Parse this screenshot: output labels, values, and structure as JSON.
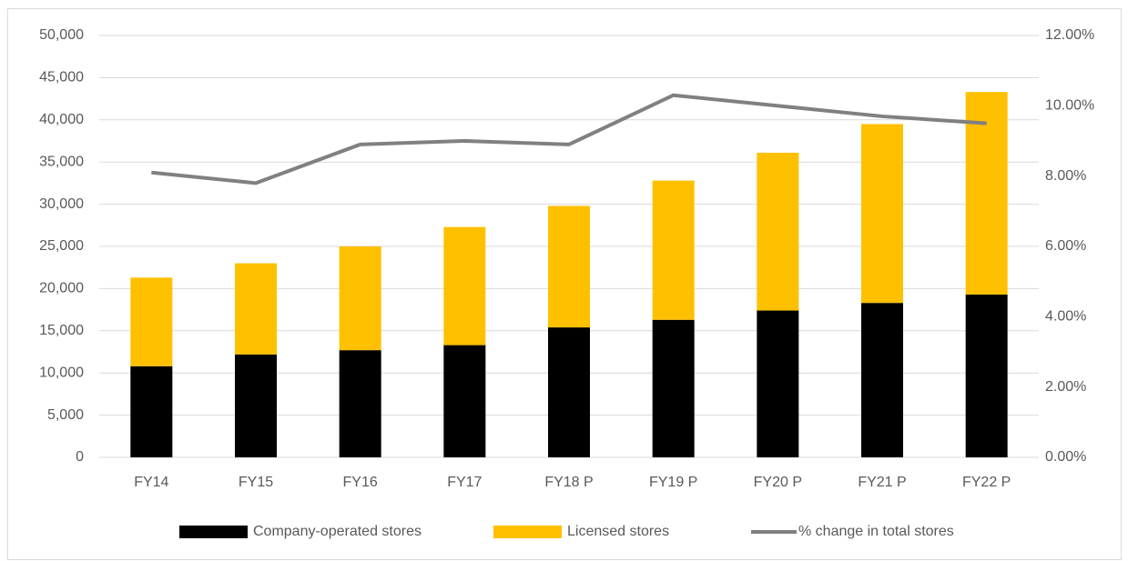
{
  "chart_data": {
    "type": "bar",
    "categories": [
      "FY14",
      "FY15",
      "FY16",
      "FY17",
      "FY18 P",
      "FY19 P",
      "FY20 P",
      "FY21 P",
      "FY22 P"
    ],
    "series": [
      {
        "name": "Company-operated stores",
        "color": "#000000",
        "values": [
          10800,
          12200,
          12700,
          13300,
          15400,
          16300,
          17400,
          18300,
          19300
        ]
      },
      {
        "name": "Licensed stores",
        "color": "#ffc000",
        "values": [
          10500,
          10800,
          12300,
          14000,
          14400,
          16500,
          18700,
          21200,
          24000
        ]
      },
      {
        "name": "% change in total stores",
        "color": "#808080",
        "type": "line",
        "axis": "y2",
        "values": [
          8.1,
          7.8,
          8.9,
          9.0,
          8.9,
          10.3,
          10.0,
          9.7,
          9.5
        ]
      }
    ],
    "stacked": true,
    "ylim": [
      0,
      50000
    ],
    "yticks": [
      0,
      {
        "value": 5000,
        "label": "5,000"
      },
      {
        "value": 10000,
        "label": "10,000"
      },
      {
        "value": 15000,
        "label": "15,000"
      },
      {
        "value": 20000,
        "label": "20,000"
      },
      {
        "value": 25000,
        "label": "25,000"
      },
      {
        "value": 30000,
        "label": "30,000"
      },
      {
        "value": 35000,
        "label": "35,000"
      },
      {
        "value": 40000,
        "label": "40,000"
      },
      {
        "value": 45000,
        "label": "45,000"
      },
      {
        "value": 50000,
        "label": "50,000"
      }
    ],
    "y2lim": [
      0,
      12
    ],
    "y2ticks": [
      {
        "value": 0,
        "label": "0.00%"
      },
      {
        "value": 2,
        "label": "2.00%"
      },
      {
        "value": 4,
        "label": "4.00%"
      },
      {
        "value": 6,
        "label": "6.00%"
      },
      {
        "value": 8,
        "label": "8.00%"
      },
      {
        "value": 10,
        "label": "10.00%"
      },
      {
        "value": 12,
        "label": "12.00%"
      }
    ],
    "grid": true,
    "legend": "bottom"
  }
}
